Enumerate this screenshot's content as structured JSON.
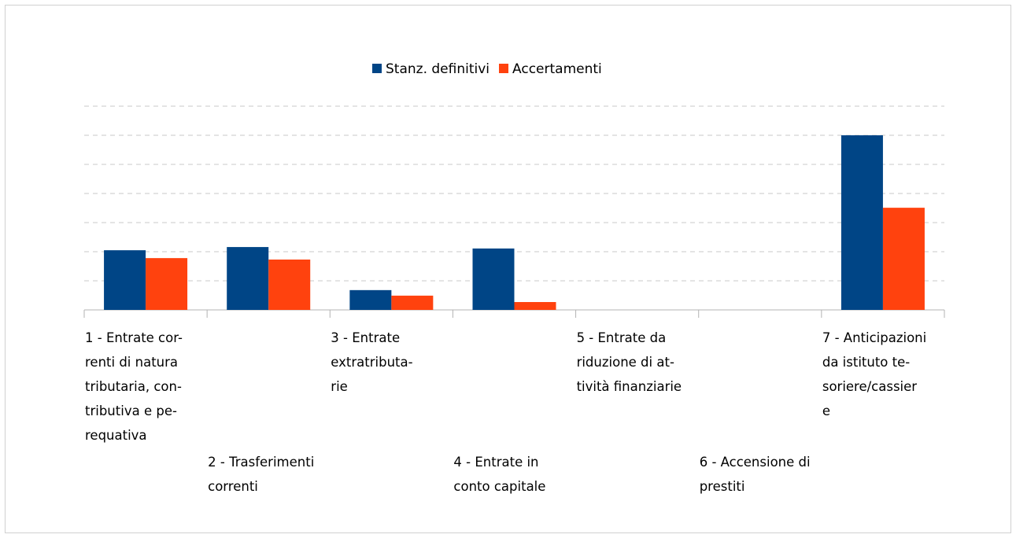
{
  "chart_data": {
    "type": "bar",
    "categories": [
      "1 - Entrate cor-\nrenti di natura\ntributaria, con-\ntributiva e pe-\nrequativa",
      "2 - Trasferimenti\ncorrenti",
      "3 - Entrate\nextratributa-\nrie",
      "4 - Entrate in\nconto capitale",
      "5 - Entrate da\nriduzione di at-\ntività finanziarie",
      "6 - Accensione di\nprestiti",
      "7 - Anticipazioni\nda istituto te-\nsoriere/cassier\ne"
    ],
    "series": [
      {
        "name": "Stanz. definitivi",
        "color": "#004586",
        "values": [
          2.05,
          2.16,
          0.68,
          2.11,
          0,
          0,
          6.0
        ]
      },
      {
        "name": "Accertamenti",
        "color": "#ff420e",
        "values": [
          1.78,
          1.73,
          0.49,
          0.27,
          0,
          0,
          3.51
        ]
      }
    ],
    "ylim": [
      0,
      7
    ],
    "yticks": [
      1,
      2,
      3,
      4,
      5,
      6,
      7
    ],
    "grid": true,
    "legend": "top"
  }
}
